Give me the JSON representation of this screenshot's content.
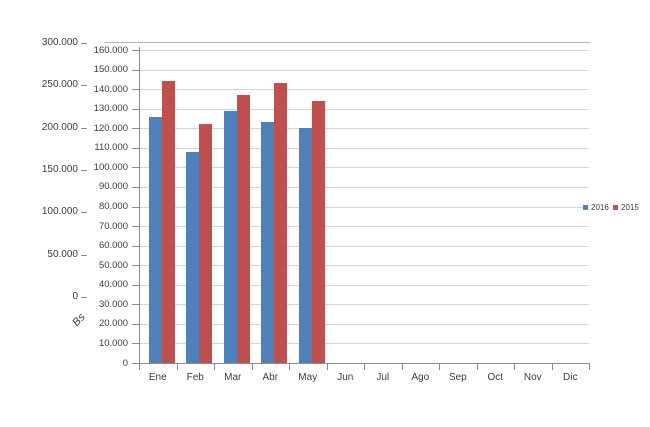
{
  "chart_data": {
    "type": "bar",
    "title": "",
    "categories": [
      "Ene",
      "Feb",
      "Mar",
      "Abr",
      "May",
      "Jun",
      "Jul",
      "Ago",
      "Sep",
      "Oct",
      "Nov",
      "Dic"
    ],
    "series": [
      {
        "name": "2016",
        "color": "#4F81BD",
        "values": [
          126000,
          108000,
          129000,
          123000,
          120000,
          null,
          null,
          null,
          null,
          null,
          null,
          null
        ]
      },
      {
        "name": "2015",
        "color": "#C0504D",
        "values": [
          144000,
          122000,
          137000,
          143000,
          134000,
          null,
          null,
          null,
          null,
          null,
          null,
          null
        ]
      }
    ],
    "inner_axis": {
      "min": 0,
      "max": 160000,
      "step": 10000,
      "tick_values": [
        0,
        10000,
        20000,
        30000,
        40000,
        50000,
        60000,
        70000,
        80000,
        90000,
        100000,
        110000,
        120000,
        130000,
        140000,
        150000,
        160000
      ],
      "tick_labels": [
        "0",
        "10.000",
        "20.000",
        "30.000",
        "40.000",
        "50.000",
        "60.000",
        "70.000",
        "80.000",
        "90.000",
        "100.000",
        "110.000",
        "120.000",
        "130.000",
        "140.000",
        "150.000",
        "160.000"
      ]
    },
    "outer_axis": {
      "title": "Bs",
      "min": 0,
      "max": 300000,
      "step": 50000,
      "tick_values": [
        0,
        50000,
        100000,
        150000,
        200000,
        250000,
        300000
      ],
      "tick_labels": [
        "0",
        "50.000",
        "100.000",
        "150.000",
        "200.000",
        "250.000",
        "300.000"
      ]
    },
    "legend": {
      "position": "right",
      "entries": [
        "2016",
        "2015"
      ]
    },
    "grid": true,
    "colors": {
      "grid": "#d4d4d4",
      "axis": "#8c8c8c",
      "text": "#3d3d3d",
      "background": "#ffffff"
    }
  }
}
